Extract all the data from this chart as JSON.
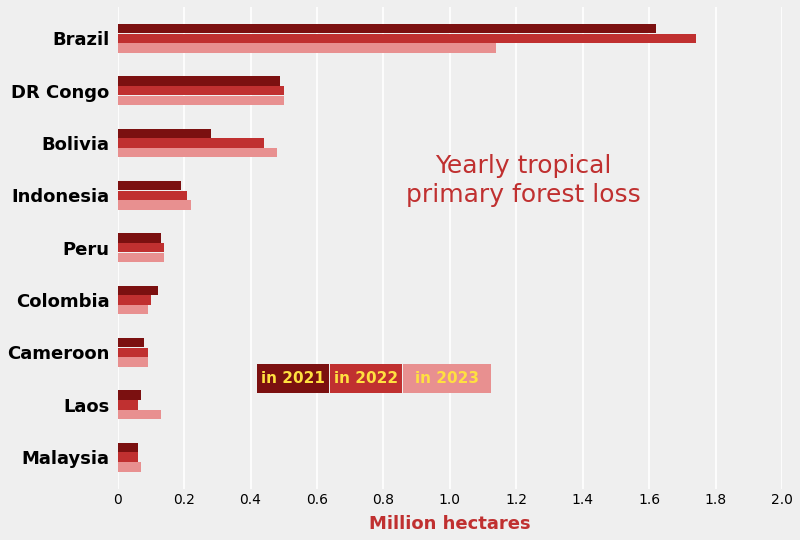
{
  "countries": [
    "Brazil",
    "DR Congo",
    "Bolivia",
    "Indonesia",
    "Peru",
    "Colombia",
    "Cameroon",
    "Laos",
    "Malaysia"
  ],
  "values_2021": [
    1.62,
    0.49,
    0.28,
    0.19,
    0.13,
    0.12,
    0.08,
    0.07,
    0.06
  ],
  "values_2022": [
    1.74,
    0.5,
    0.44,
    0.21,
    0.14,
    0.1,
    0.09,
    0.06,
    0.06
  ],
  "values_2023": [
    1.14,
    0.5,
    0.48,
    0.22,
    0.14,
    0.09,
    0.09,
    0.13,
    0.07
  ],
  "color_2021": "#7B1010",
  "color_2022": "#C03030",
  "color_2023": "#E89090",
  "background_color": "#EFEFEF",
  "title": "Yearly tropical\nprimary forest loss",
  "title_color": "#C03030",
  "xlabel": "Million hectares",
  "xlabel_color": "#C03030",
  "xlim": [
    0,
    2.0
  ],
  "xticks": [
    0.0,
    0.2,
    0.4,
    0.6,
    0.8,
    1.0,
    1.2,
    1.4,
    1.6,
    1.8,
    2.0
  ],
  "xtick_labels": [
    "0",
    "0.2",
    "0.4",
    "0.6",
    "0.8",
    "1.0",
    "1.2",
    "1.4",
    "1.6",
    "1.8",
    "2.0"
  ],
  "legend_2021": "in 2021",
  "legend_2022": "in 2022",
  "legend_2023": "in 2023",
  "legend_text_color": "#FFE040"
}
